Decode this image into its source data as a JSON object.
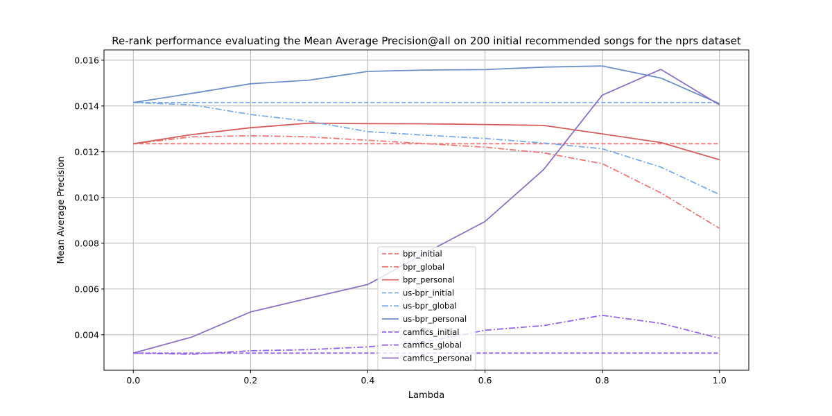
{
  "chart_data": {
    "type": "line",
    "title": "Re-rank performance evaluating the Mean Average Precision@all on 200 initial recommended songs for the nprs dataset",
    "xlabel": "Lambda",
    "ylabel": "Mean Average Precision",
    "xlim": [
      -0.05,
      1.05
    ],
    "ylim": [
      0.00245,
      0.01645
    ],
    "xticks": [
      0.0,
      0.2,
      0.4,
      0.6,
      0.8,
      1.0
    ],
    "xtick_labels": [
      "0.0",
      "0.2",
      "0.4",
      "0.6",
      "0.8",
      "1.0"
    ],
    "yticks": [
      0.004,
      0.006,
      0.008,
      0.01,
      0.012,
      0.014,
      0.016
    ],
    "ytick_labels": [
      "0.004",
      "0.006",
      "0.008",
      "0.010",
      "0.012",
      "0.014",
      "0.016"
    ],
    "grid": true,
    "legend_position": "lower-center",
    "x": [
      0.0,
      0.1,
      0.2,
      0.3,
      0.4,
      0.5,
      0.6,
      0.7,
      0.8,
      0.9,
      1.0
    ],
    "series": [
      {
        "name": "bpr_initial",
        "color": "#f07676",
        "dash": "dashed",
        "values": [
          0.01235,
          0.01235,
          0.01235,
          0.01235,
          0.01235,
          0.01235,
          0.01235,
          0.01235,
          0.01235,
          0.01235,
          0.01235
        ]
      },
      {
        "name": "bpr_global",
        "color": "#f07676",
        "dash": "dashdot",
        "values": [
          0.01235,
          0.01265,
          0.0127,
          0.01265,
          0.0125,
          0.01235,
          0.0122,
          0.01195,
          0.01148,
          0.0102,
          0.00865
        ]
      },
      {
        "name": "bpr_personal",
        "color": "#d65c5c",
        "dash": "solid",
        "values": [
          0.01235,
          0.01275,
          0.01305,
          0.01325,
          0.01323,
          0.01322,
          0.01319,
          0.01315,
          0.01278,
          0.0124,
          0.01165
        ]
      },
      {
        "name": "us-bpr_initial",
        "color": "#7aaaec",
        "dash": "dashed",
        "values": [
          0.01415,
          0.01415,
          0.01415,
          0.01415,
          0.01415,
          0.01415,
          0.01415,
          0.01415,
          0.01415,
          0.01415,
          0.01415
        ]
      },
      {
        "name": "us-bpr_global",
        "color": "#7aaaec",
        "dash": "dashdot",
        "values": [
          0.01415,
          0.01405,
          0.01363,
          0.01333,
          0.01288,
          0.01272,
          0.01258,
          0.01238,
          0.01213,
          0.01133,
          0.01013
        ]
      },
      {
        "name": "us-bpr_personal",
        "color": "#6c8fc7",
        "dash": "solid",
        "values": [
          0.01415,
          0.01455,
          0.01497,
          0.01513,
          0.01551,
          0.01557,
          0.01559,
          0.0157,
          0.01575,
          0.01522,
          0.0141
        ]
      },
      {
        "name": "camfics_initial",
        "color": "#9262ea",
        "dash": "dashed",
        "values": [
          0.0032,
          0.0032,
          0.0032,
          0.0032,
          0.0032,
          0.0032,
          0.0032,
          0.0032,
          0.0032,
          0.0032,
          0.0032
        ]
      },
      {
        "name": "camfics_global",
        "color": "#9262ea",
        "dash": "dashdot",
        "values": [
          0.0032,
          0.00315,
          0.0033,
          0.00335,
          0.00347,
          0.0037,
          0.0042,
          0.0044,
          0.00485,
          0.0045,
          0.00385
        ]
      },
      {
        "name": "camfics_personal",
        "color": "#8c70c4",
        "dash": "solid",
        "values": [
          0.0032,
          0.0039,
          0.005,
          0.0056,
          0.0062,
          0.0076,
          0.00895,
          0.01122,
          0.01447,
          0.0156,
          0.01405
        ]
      }
    ]
  }
}
